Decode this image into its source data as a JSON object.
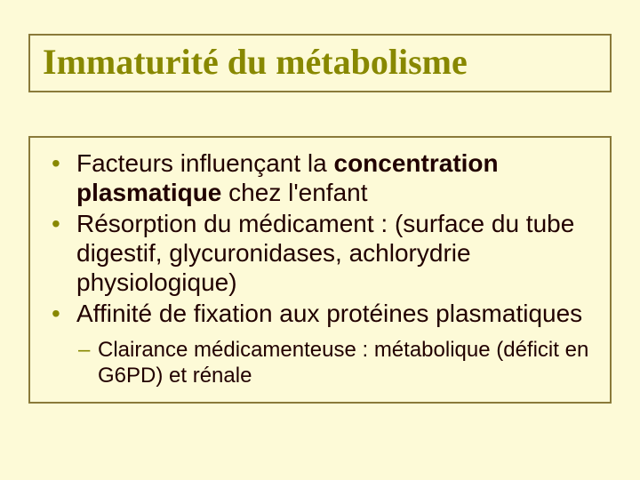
{
  "slide": {
    "background_color": "#fdfad7",
    "border_color": "#8a7a3a",
    "accent_color": "#888800",
    "text_color": "#210000",
    "title_font": "Georgia",
    "body_font": "Verdana",
    "title_fontsize": 40,
    "body_fontsize": 28,
    "sub_fontsize": 24
  },
  "title": "Immaturité du métabolisme",
  "bullets": {
    "b1_pre": "Facteurs influençant la ",
    "b1_bold": "concentration plasmatique",
    "b1_post": " chez l'enfant",
    "b2_pre": "Résorption",
    "b2_post": " du médicament : (surface du tube digestif, glycuronidases, achlorydrie physiologique)",
    "b3_pre": "Affinité de fixation",
    "b3_post": " aux protéines plasmatiques"
  },
  "sub": {
    "s1": "Clairance médicamenteuse : métabolique (déficit en G6PD) et rénale"
  }
}
